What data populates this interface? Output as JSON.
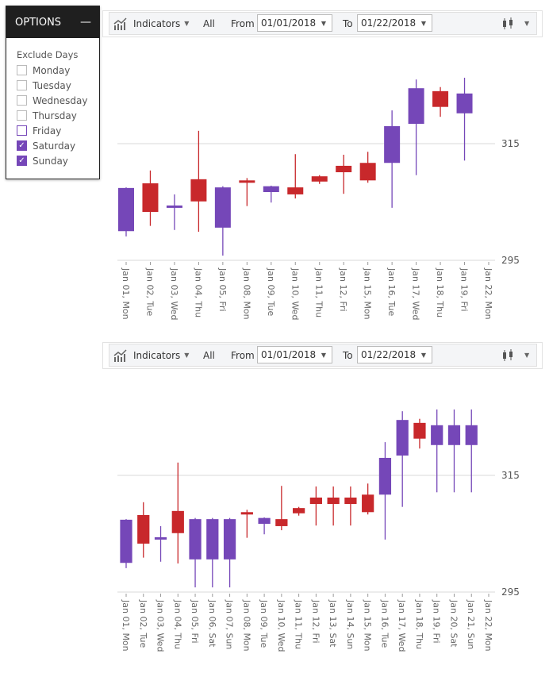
{
  "options": {
    "title": "OPTIONS",
    "minimize_icon": "minus-icon",
    "section_title": "Exclude Days",
    "days": [
      {
        "label": "Monday",
        "checked": false
      },
      {
        "label": "Tuesday",
        "checked": false
      },
      {
        "label": "Wednesday",
        "checked": false
      },
      {
        "label": "Thursday",
        "checked": false
      },
      {
        "label": "Friday",
        "checked": false,
        "hover": true
      },
      {
        "label": "Saturday",
        "checked": true
      },
      {
        "label": "Sunday",
        "checked": true
      }
    ]
  },
  "toolbar": {
    "indicators_label": "Indicators",
    "all_label": "All",
    "from_label": "From",
    "from_value": "01/01/2018",
    "to_label": "To",
    "to_value": "01/22/2018",
    "chart_type_icon": "candlestick-icon"
  },
  "colors": {
    "up": "#7547b8",
    "down": "#c8282b",
    "accent": "#7547b8"
  },
  "chart_data": [
    {
      "type": "candlestick",
      "y_ticks": [
        295,
        315
      ],
      "ylim": [
        295,
        326.3
      ],
      "grid": "horizontal",
      "categories": [
        "Jan 01, Mon",
        "Jan 02, Tue",
        "Jan 03, Wed",
        "Jan 04, Thu",
        "Jan 05, Fri",
        "Jan 08, Mon",
        "Jan 09, Tue",
        "Jan 10, Wed",
        "Jan 11, Thu",
        "Jan 12, Fri",
        "Jan 15, Mon",
        "Jan 16, Tue",
        "Jan 17, Wed",
        "Jan 18, Thu",
        "Jan 19, Fri",
        "Jan 22, Mon"
      ],
      "ohlc": [
        [
          300.0,
          307.5,
          299.1,
          307.4
        ],
        [
          308.2,
          310.4,
          300.9,
          303.3
        ],
        [
          304.0,
          306.3,
          300.2,
          304.4
        ],
        [
          308.9,
          317.2,
          299.9,
          305.1
        ],
        [
          300.6,
          307.7,
          295.8,
          307.5
        ],
        [
          308.7,
          309.1,
          304.3,
          308.3
        ],
        [
          306.7,
          307.8,
          304.9,
          307.7
        ],
        [
          307.5,
          313.2,
          305.6,
          306.3
        ],
        [
          309.4,
          309.6,
          308.1,
          308.5
        ],
        [
          311.2,
          313.1,
          306.4,
          310.1
        ],
        [
          311.7,
          313.6,
          308.3,
          308.7
        ],
        [
          311.7,
          320.7,
          304.0,
          318.0
        ],
        [
          318.4,
          326.0,
          309.6,
          324.5
        ],
        [
          324.0,
          324.7,
          319.6,
          321.3
        ],
        [
          320.2,
          326.3,
          312.1,
          323.6
        ],
        null
      ]
    },
    {
      "type": "candlestick",
      "y_ticks": [
        295,
        315
      ],
      "ylim": [
        295,
        326.3
      ],
      "grid": "horizontal",
      "categories": [
        "Jan 01, Mon",
        "Jan 02, Tue",
        "Jan 03, Wed",
        "Jan 04, Thu",
        "Jan 05, Fri",
        "Jan 06, Sat",
        "Jan 07, Sun",
        "Jan 08, Mon",
        "Jan 09, Tue",
        "Jan 10, Wed",
        "Jan 11, Thu",
        "Jan 12, Fri",
        "Jan 13, Sat",
        "Jan 14, Sun",
        "Jan 15, Mon",
        "Jan 16, Tue",
        "Jan 17, Wed",
        "Jan 18, Thu",
        "Jan 19, Fri",
        "Jan 20, Sat",
        "Jan 21, Sun",
        "Jan 22, Mon"
      ],
      "ohlc": [
        [
          300.0,
          307.5,
          299.1,
          307.4
        ],
        [
          308.2,
          310.4,
          300.9,
          303.3
        ],
        [
          304.0,
          306.3,
          300.2,
          304.4
        ],
        [
          308.9,
          317.2,
          299.9,
          305.1
        ],
        [
          300.6,
          307.7,
          295.8,
          307.5
        ],
        [
          300.6,
          307.7,
          295.8,
          307.5
        ],
        [
          300.6,
          307.7,
          295.8,
          307.5
        ],
        [
          308.7,
          309.1,
          304.3,
          308.3
        ],
        [
          306.7,
          307.8,
          304.9,
          307.7
        ],
        [
          307.5,
          313.2,
          305.6,
          306.3
        ],
        [
          309.4,
          309.6,
          308.1,
          308.5
        ],
        [
          311.2,
          313.1,
          306.4,
          310.1
        ],
        [
          311.2,
          313.1,
          306.4,
          310.1
        ],
        [
          311.2,
          313.1,
          306.4,
          310.1
        ],
        [
          311.7,
          313.6,
          308.3,
          308.7
        ],
        [
          311.7,
          320.7,
          304.0,
          318.0
        ],
        [
          318.4,
          326.0,
          309.6,
          324.5
        ],
        [
          324.0,
          324.7,
          319.6,
          321.3
        ],
        [
          320.2,
          326.3,
          312.1,
          323.6
        ],
        [
          320.2,
          326.3,
          312.1,
          323.6
        ],
        [
          320.2,
          326.3,
          312.1,
          323.6
        ],
        null
      ]
    }
  ]
}
